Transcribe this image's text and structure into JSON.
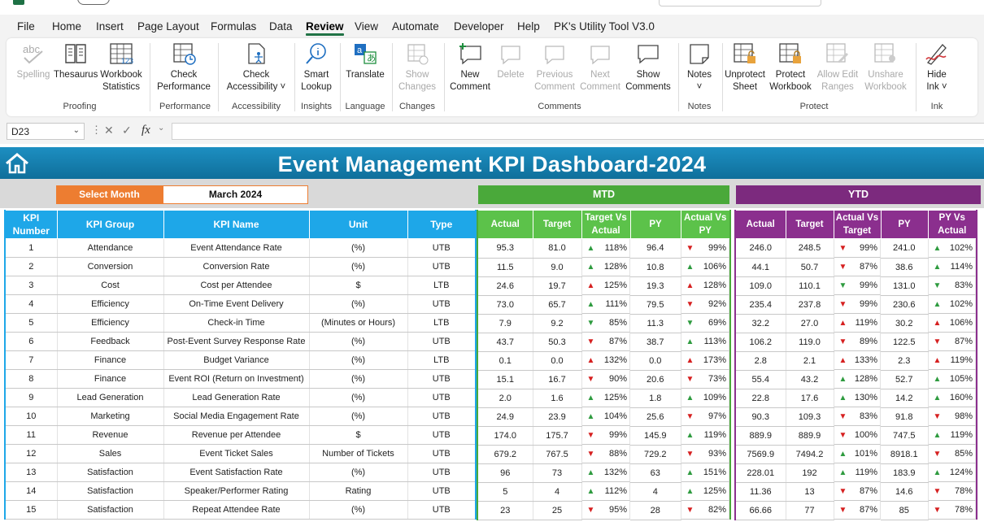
{
  "menu": {
    "items": [
      "File",
      "Home",
      "Insert",
      "Page Layout",
      "Formulas",
      "Data",
      "Review",
      "View",
      "Automate",
      "Developer",
      "Help",
      "PK's Utility Tool V3.0"
    ],
    "active": "Review"
  },
  "ribbon": {
    "spelling": "Spelling",
    "thesaurus": "Thesaurus",
    "workbook_stats": [
      "Workbook",
      "Statistics"
    ],
    "check_performance": [
      "Check",
      "Performance"
    ],
    "check_accessibility": [
      "Check",
      "Accessibility ˅"
    ],
    "smart_lookup": [
      "Smart",
      "Lookup"
    ],
    "translate": "Translate",
    "show_changes": [
      "Show",
      "Changes"
    ],
    "new_comment": [
      "New",
      "Comment"
    ],
    "delete": "Delete",
    "previous_comment": [
      "Previous",
      "Comment"
    ],
    "next_comment": [
      "Next",
      "Comment"
    ],
    "show_comments": [
      "Show",
      "Comments"
    ],
    "notes": [
      "Notes",
      "˅"
    ],
    "unprotect_sheet": [
      "Unprotect",
      "Sheet"
    ],
    "protect_workbook": [
      "Protect",
      "Workbook"
    ],
    "allow_edit_ranges": [
      "Allow Edit",
      "Ranges"
    ],
    "unshare_workbook": [
      "Unshare",
      "Workbook"
    ],
    "hide_ink": [
      "Hide",
      "Ink ˅"
    ],
    "groups": {
      "proofing": "Proofing",
      "performance": "Performance",
      "accessibility": "Accessibility",
      "insights": "Insights",
      "language": "Language",
      "changes": "Changes",
      "comments": "Comments",
      "notes": "Notes",
      "protect": "Protect",
      "ink": "Ink"
    },
    "spelling_icon_text": "abc"
  },
  "formula_bar": {
    "cell_ref": "D23",
    "fx": "fx",
    "value": ""
  },
  "dashboard": {
    "title": "Event Management KPI Dashboard-2024",
    "select_month_label": "Select Month",
    "selected_month": "March 2024",
    "mtd_label": "MTD",
    "ytd_label": "YTD",
    "kpi_headers": [
      "KPI Number",
      "KPI Group",
      "KPI Name",
      "Unit",
      "Type"
    ],
    "mtd_headers": [
      "Actual",
      "Target",
      "Target Vs Actual",
      "PY",
      "Actual Vs PY"
    ],
    "ytd_headers": [
      "Actual",
      "Target",
      "Actual Vs Target",
      "PY",
      "PY Vs Actual"
    ],
    "colors": {
      "up_good": "#2e9b3f",
      "down_bad": "#d62020",
      "header_blue": "#1ea7e8",
      "mtd_green": "#4aa93a",
      "ytd_purple": "#7c2a7e",
      "select_orange": "#ed7d31"
    },
    "rows": [
      {
        "n": "1",
        "group": "Attendance",
        "name": "Event Attendance Rate",
        "unit": "(%)",
        "type": "UTB",
        "mtd": {
          "actual": "95.3",
          "target": "81.0",
          "tva": {
            "dir": "up",
            "good": true,
            "pct": "118%"
          },
          "py": "96.4",
          "avp": {
            "dir": "down",
            "good": false,
            "pct": "99%"
          }
        },
        "ytd": {
          "actual": "246.0",
          "target": "248.5",
          "avt": {
            "dir": "down",
            "good": false,
            "pct": "99%"
          },
          "py": "241.0",
          "pva": {
            "dir": "up",
            "good": true,
            "pct": "102%"
          }
        }
      },
      {
        "n": "2",
        "group": "Conversion",
        "name": "Conversion Rate",
        "unit": "(%)",
        "type": "UTB",
        "mtd": {
          "actual": "11.5",
          "target": "9.0",
          "tva": {
            "dir": "up",
            "good": true,
            "pct": "128%"
          },
          "py": "10.8",
          "avp": {
            "dir": "up",
            "good": true,
            "pct": "106%"
          }
        },
        "ytd": {
          "actual": "44.1",
          "target": "50.7",
          "avt": {
            "dir": "down",
            "good": false,
            "pct": "87%"
          },
          "py": "38.6",
          "pva": {
            "dir": "up",
            "good": true,
            "pct": "114%"
          }
        }
      },
      {
        "n": "3",
        "group": "Cost",
        "name": "Cost per Attendee",
        "unit": "$",
        "type": "LTB",
        "mtd": {
          "actual": "24.6",
          "target": "19.7",
          "tva": {
            "dir": "up",
            "good": false,
            "pct": "125%"
          },
          "py": "19.3",
          "avp": {
            "dir": "up",
            "good": false,
            "pct": "128%"
          }
        },
        "ytd": {
          "actual": "109.0",
          "target": "110.1",
          "avt": {
            "dir": "down",
            "good": true,
            "pct": "99%"
          },
          "py": "131.0",
          "pva": {
            "dir": "down",
            "good": true,
            "pct": "83%"
          }
        }
      },
      {
        "n": "4",
        "group": "Efficiency",
        "name": "On-Time Event Delivery",
        "unit": "(%)",
        "type": "UTB",
        "mtd": {
          "actual": "73.0",
          "target": "65.7",
          "tva": {
            "dir": "up",
            "good": true,
            "pct": "111%"
          },
          "py": "79.5",
          "avp": {
            "dir": "down",
            "good": false,
            "pct": "92%"
          }
        },
        "ytd": {
          "actual": "235.4",
          "target": "237.8",
          "avt": {
            "dir": "down",
            "good": false,
            "pct": "99%"
          },
          "py": "230.6",
          "pva": {
            "dir": "up",
            "good": true,
            "pct": "102%"
          }
        }
      },
      {
        "n": "5",
        "group": "Efficiency",
        "name": "Check-in Time",
        "unit": "(Minutes or Hours)",
        "type": "LTB",
        "mtd": {
          "actual": "7.9",
          "target": "9.2",
          "tva": {
            "dir": "down",
            "good": true,
            "pct": "85%"
          },
          "py": "11.3",
          "avp": {
            "dir": "down",
            "good": true,
            "pct": "69%"
          }
        },
        "ytd": {
          "actual": "32.2",
          "target": "27.0",
          "avt": {
            "dir": "up",
            "good": false,
            "pct": "119%"
          },
          "py": "30.2",
          "pva": {
            "dir": "up",
            "good": false,
            "pct": "106%"
          }
        }
      },
      {
        "n": "6",
        "group": "Feedback",
        "name": "Post-Event Survey Response Rate",
        "unit": "(%)",
        "type": "UTB",
        "mtd": {
          "actual": "43.7",
          "target": "50.3",
          "tva": {
            "dir": "down",
            "good": false,
            "pct": "87%"
          },
          "py": "38.7",
          "avp": {
            "dir": "up",
            "good": true,
            "pct": "113%"
          }
        },
        "ytd": {
          "actual": "106.2",
          "target": "119.0",
          "avt": {
            "dir": "down",
            "good": false,
            "pct": "89%"
          },
          "py": "122.5",
          "pva": {
            "dir": "down",
            "good": false,
            "pct": "87%"
          }
        }
      },
      {
        "n": "7",
        "group": "Finance",
        "name": "Budget Variance",
        "unit": "(%)",
        "type": "LTB",
        "mtd": {
          "actual": "0.1",
          "target": "0.0",
          "tva": {
            "dir": "up",
            "good": false,
            "pct": "132%"
          },
          "py": "0.0",
          "avp": {
            "dir": "up",
            "good": false,
            "pct": "173%"
          }
        },
        "ytd": {
          "actual": "2.8",
          "target": "2.1",
          "avt": {
            "dir": "up",
            "good": false,
            "pct": "133%"
          },
          "py": "2.3",
          "pva": {
            "dir": "up",
            "good": false,
            "pct": "119%"
          }
        }
      },
      {
        "n": "8",
        "group": "Finance",
        "name": "Event ROI (Return on Investment)",
        "unit": "(%)",
        "type": "UTB",
        "mtd": {
          "actual": "15.1",
          "target": "16.7",
          "tva": {
            "dir": "down",
            "good": false,
            "pct": "90%"
          },
          "py": "20.6",
          "avp": {
            "dir": "down",
            "good": false,
            "pct": "73%"
          }
        },
        "ytd": {
          "actual": "55.4",
          "target": "43.2",
          "avt": {
            "dir": "up",
            "good": true,
            "pct": "128%"
          },
          "py": "52.7",
          "pva": {
            "dir": "up",
            "good": true,
            "pct": "105%"
          }
        }
      },
      {
        "n": "9",
        "group": "Lead Generation",
        "name": "Lead Generation Rate",
        "unit": "(%)",
        "type": "UTB",
        "mtd": {
          "actual": "2.0",
          "target": "1.6",
          "tva": {
            "dir": "up",
            "good": true,
            "pct": "125%"
          },
          "py": "1.8",
          "avp": {
            "dir": "up",
            "good": true,
            "pct": "109%"
          }
        },
        "ytd": {
          "actual": "22.8",
          "target": "17.6",
          "avt": {
            "dir": "up",
            "good": true,
            "pct": "130%"
          },
          "py": "14.2",
          "pva": {
            "dir": "up",
            "good": true,
            "pct": "160%"
          }
        }
      },
      {
        "n": "10",
        "group": "Marketing",
        "name": "Social Media Engagement Rate",
        "unit": "(%)",
        "type": "UTB",
        "mtd": {
          "actual": "24.9",
          "target": "23.9",
          "tva": {
            "dir": "up",
            "good": true,
            "pct": "104%"
          },
          "py": "25.6",
          "avp": {
            "dir": "down",
            "good": false,
            "pct": "97%"
          }
        },
        "ytd": {
          "actual": "90.3",
          "target": "109.3",
          "avt": {
            "dir": "down",
            "good": false,
            "pct": "83%"
          },
          "py": "91.8",
          "pva": {
            "dir": "down",
            "good": false,
            "pct": "98%"
          }
        }
      },
      {
        "n": "11",
        "group": "Revenue",
        "name": "Revenue per Attendee",
        "unit": "$",
        "type": "UTB",
        "mtd": {
          "actual": "174.0",
          "target": "175.7",
          "tva": {
            "dir": "down",
            "good": false,
            "pct": "99%"
          },
          "py": "145.9",
          "avp": {
            "dir": "up",
            "good": true,
            "pct": "119%"
          }
        },
        "ytd": {
          "actual": "889.9",
          "target": "889.9",
          "avt": {
            "dir": "down",
            "good": false,
            "pct": "100%"
          },
          "py": "747.5",
          "pva": {
            "dir": "up",
            "good": true,
            "pct": "119%"
          }
        }
      },
      {
        "n": "12",
        "group": "Sales",
        "name": "Event Ticket Sales",
        "unit": "Number of Tickets",
        "type": "UTB",
        "mtd": {
          "actual": "679.2",
          "target": "767.5",
          "tva": {
            "dir": "down",
            "good": false,
            "pct": "88%"
          },
          "py": "729.2",
          "avp": {
            "dir": "down",
            "good": false,
            "pct": "93%"
          }
        },
        "ytd": {
          "actual": "7569.9",
          "target": "7494.2",
          "avt": {
            "dir": "up",
            "good": true,
            "pct": "101%"
          },
          "py": "8918.1",
          "pva": {
            "dir": "down",
            "good": false,
            "pct": "85%"
          }
        }
      },
      {
        "n": "13",
        "group": "Satisfaction",
        "name": "Event Satisfaction Rate",
        "unit": "(%)",
        "type": "UTB",
        "mtd": {
          "actual": "96",
          "target": "73",
          "tva": {
            "dir": "up",
            "good": true,
            "pct": "132%"
          },
          "py": "63",
          "avp": {
            "dir": "up",
            "good": true,
            "pct": "151%"
          }
        },
        "ytd": {
          "actual": "228.01",
          "target": "192",
          "avt": {
            "dir": "up",
            "good": true,
            "pct": "119%"
          },
          "py": "183.9",
          "pva": {
            "dir": "up",
            "good": true,
            "pct": "124%"
          }
        }
      },
      {
        "n": "14",
        "group": "Satisfaction",
        "name": "Speaker/Performer Rating",
        "unit": "Rating",
        "type": "UTB",
        "mtd": {
          "actual": "5",
          "target": "4",
          "tva": {
            "dir": "up",
            "good": true,
            "pct": "112%"
          },
          "py": "4",
          "avp": {
            "dir": "up",
            "good": true,
            "pct": "125%"
          }
        },
        "ytd": {
          "actual": "11.36",
          "target": "13",
          "avt": {
            "dir": "down",
            "good": false,
            "pct": "87%"
          },
          "py": "14.6",
          "pva": {
            "dir": "down",
            "good": false,
            "pct": "78%"
          }
        }
      },
      {
        "n": "15",
        "group": "Satisfaction",
        "name": "Repeat Attendee Rate",
        "unit": "(%)",
        "type": "UTB",
        "mtd": {
          "actual": "23",
          "target": "25",
          "tva": {
            "dir": "down",
            "good": false,
            "pct": "95%"
          },
          "py": "28",
          "avp": {
            "dir": "down",
            "good": false,
            "pct": "82%"
          }
        },
        "ytd": {
          "actual": "66.66",
          "target": "77",
          "avt": {
            "dir": "down",
            "good": false,
            "pct": "87%"
          },
          "py": "85",
          "pva": {
            "dir": "down",
            "good": false,
            "pct": "78%"
          }
        }
      }
    ]
  }
}
